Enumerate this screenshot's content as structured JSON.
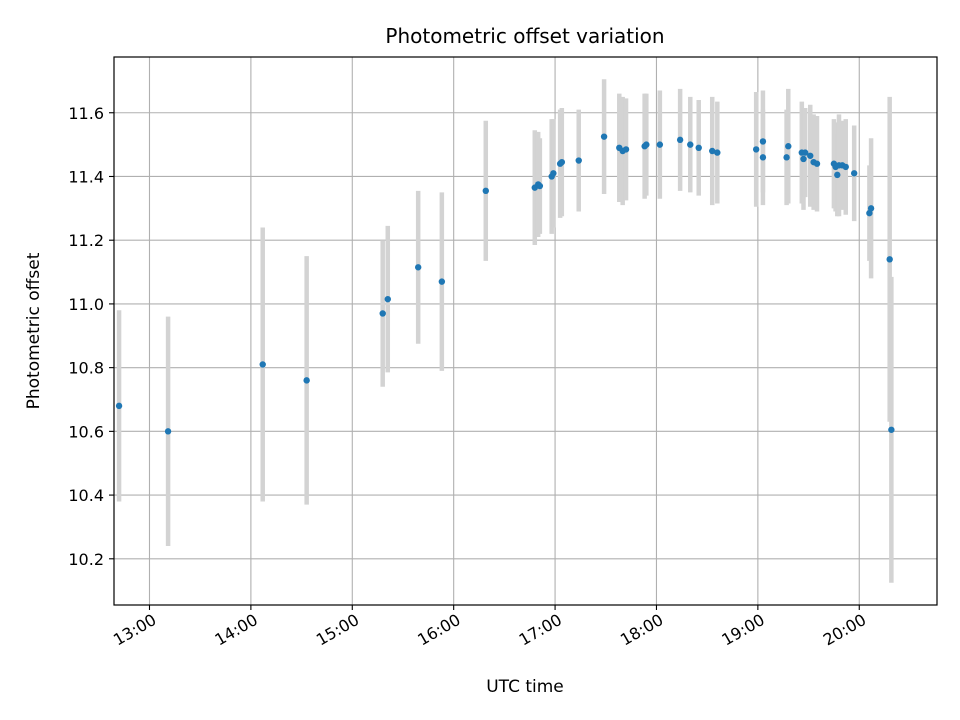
{
  "chart_data": {
    "type": "scatter",
    "title": "Photometric offset variation",
    "xlabel": "UTC time",
    "ylabel": "Photometric offset",
    "grid": true,
    "xlim": [
      "12:39",
      "20:46"
    ],
    "ylim": [
      10.055,
      11.775
    ],
    "x_ticks": [
      "13:00",
      "14:00",
      "15:00",
      "16:00",
      "17:00",
      "18:00",
      "19:00",
      "20:00"
    ],
    "y_ticks": [
      10.2,
      10.4,
      10.6,
      10.8,
      11.0,
      11.2,
      11.4,
      11.6
    ],
    "marker_color": "#1f77b4",
    "errorbar_color": "#d3d3d3",
    "series": [
      {
        "x": [
          "12:42",
          "13:11",
          "14:07",
          "14:33",
          "15:18",
          "15:21",
          "15:39",
          "15:53",
          "16:19",
          "16:48",
          "16:50",
          "16:51",
          "16:58",
          "16:59",
          "17:03",
          "17:04",
          "17:14",
          "17:29",
          "17:38",
          "17:40",
          "17:42",
          "17:53",
          "17:54",
          "18:02",
          "18:14",
          "18:20",
          "18:25",
          "18:33",
          "18:36",
          "18:59",
          "19:03",
          "19:03",
          "19:17",
          "19:18",
          "19:26",
          "19:27",
          "19:28",
          "19:31",
          "19:33",
          "19:35",
          "19:45",
          "19:46",
          "19:47",
          "19:48",
          "19:50",
          "19:52",
          "19:57",
          "20:06",
          "20:07",
          "20:18",
          "20:19"
        ],
        "y": [
          10.68,
          10.6,
          10.81,
          10.76,
          10.97,
          11.015,
          11.115,
          11.07,
          11.355,
          11.365,
          11.375,
          11.37,
          11.4,
          11.41,
          11.44,
          11.445,
          11.45,
          11.525,
          11.49,
          11.48,
          11.485,
          11.495,
          11.5,
          11.5,
          11.515,
          11.5,
          11.49,
          11.48,
          11.475,
          11.485,
          11.51,
          11.46,
          11.46,
          11.495,
          11.475,
          11.455,
          11.475,
          11.465,
          11.445,
          11.44,
          11.44,
          11.43,
          11.405,
          11.435,
          11.435,
          11.43,
          11.41,
          11.285,
          11.3,
          11.14,
          10.605
        ],
        "yerr": [
          0.3,
          0.36,
          0.43,
          0.39,
          0.23,
          0.23,
          0.24,
          0.28,
          0.22,
          0.18,
          0.165,
          0.15,
          0.18,
          0.17,
          0.17,
          0.17,
          0.16,
          0.18,
          0.17,
          0.17,
          0.16,
          0.165,
          0.16,
          0.17,
          0.16,
          0.15,
          0.15,
          0.17,
          0.16,
          0.18,
          0.16,
          0.15,
          0.15,
          0.18,
          0.16,
          0.16,
          0.14,
          0.16,
          0.15,
          0.15,
          0.14,
          0.14,
          0.13,
          0.16,
          0.14,
          0.15,
          0.15,
          0.15,
          0.22,
          0.51,
          0.48
        ]
      }
    ]
  }
}
